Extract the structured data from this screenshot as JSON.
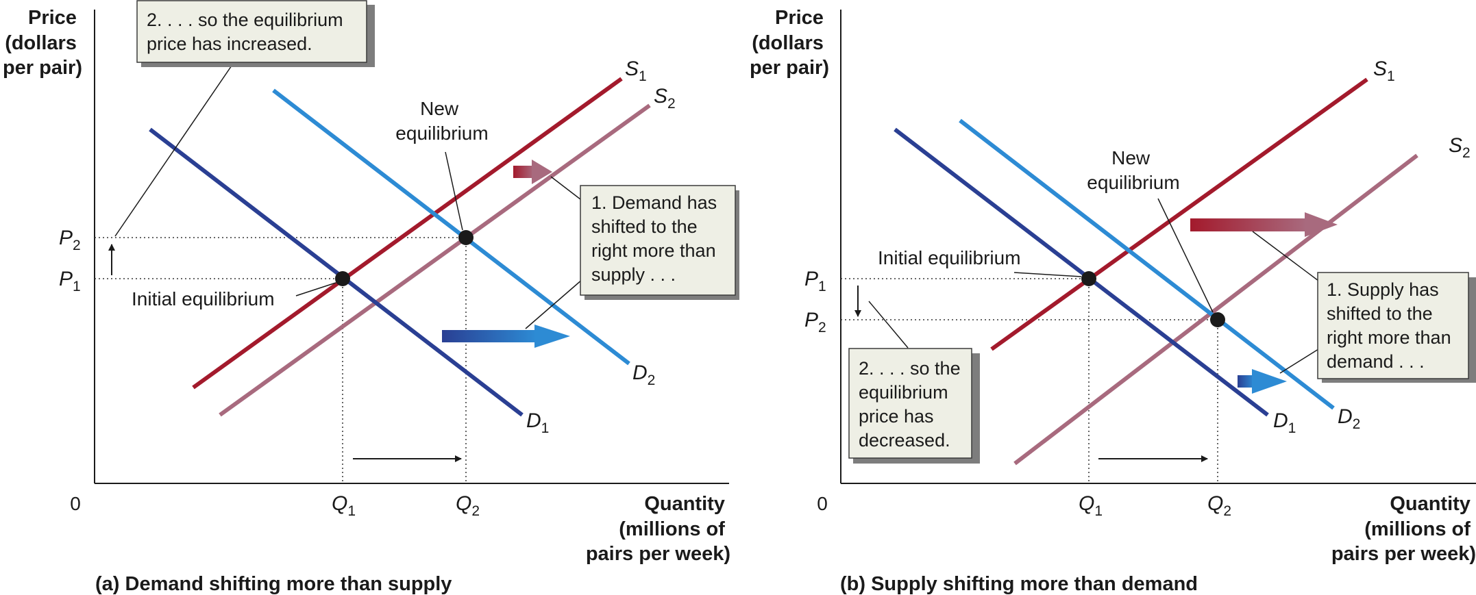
{
  "colors": {
    "supply": "#a31a2c",
    "supply_shifted": "#a86a7e",
    "demand": "#2a3f93",
    "demand_shifted": "#2d8bd4",
    "callout_fill": "#eeefe5",
    "callout_border": "#3a3a3a"
  },
  "icons": {
    "shift_arrow": "gradient-arrow-icon",
    "equilibrium_point": "dot-icon"
  },
  "panel_a": {
    "caption": "(a) Demand shifting more than supply",
    "y_axis_title": [
      "Price",
      "(dollars",
      "per pair)"
    ],
    "x_axis_title": [
      "Quantity",
      "(millions of",
      "pairs per week)"
    ],
    "origin_label": "0",
    "curves": {
      "S1": [
        "S",
        "1"
      ],
      "S2": [
        "S",
        "2"
      ],
      "D1": [
        "D",
        "1"
      ],
      "D2": [
        "D",
        "2"
      ]
    },
    "ticks": {
      "P1": [
        "P",
        "1"
      ],
      "P2": [
        "P",
        "2"
      ],
      "Q1": [
        "Q",
        "1"
      ],
      "Q2": [
        "Q",
        "2"
      ]
    },
    "initial_equilibrium": "Initial equilibrium",
    "new_equilibrium": [
      "New",
      "equilibrium"
    ],
    "callout_shift": [
      "1. Demand has",
      "shifted to the",
      "right more than",
      "supply . . ."
    ],
    "callout_price": [
      "2. . . . so the equilibrium",
      "price has increased."
    ]
  },
  "panel_b": {
    "caption": "(b) Supply shifting more than demand",
    "y_axis_title": [
      "Price",
      "(dollars",
      "per pair)"
    ],
    "x_axis_title": [
      "Quantity",
      "(millions of",
      "pairs per week)"
    ],
    "origin_label": "0",
    "curves": {
      "S1": [
        "S",
        "1"
      ],
      "S2": [
        "S",
        "2"
      ],
      "D1": [
        "D",
        "1"
      ],
      "D2": [
        "D",
        "2"
      ]
    },
    "ticks": {
      "P1": [
        "P",
        "1"
      ],
      "P2": [
        "P",
        "2"
      ],
      "Q1": [
        "Q",
        "1"
      ],
      "Q2": [
        "Q",
        "2"
      ]
    },
    "initial_equilibrium": "Initial equilibrium",
    "new_equilibrium": [
      "New",
      "equilibrium"
    ],
    "callout_shift": [
      "1. Supply has",
      "shifted to the",
      "right more than",
      "demand . . ."
    ],
    "callout_price": [
      "2. . . . so the",
      "equilibrium",
      "price has",
      "decreased."
    ]
  }
}
